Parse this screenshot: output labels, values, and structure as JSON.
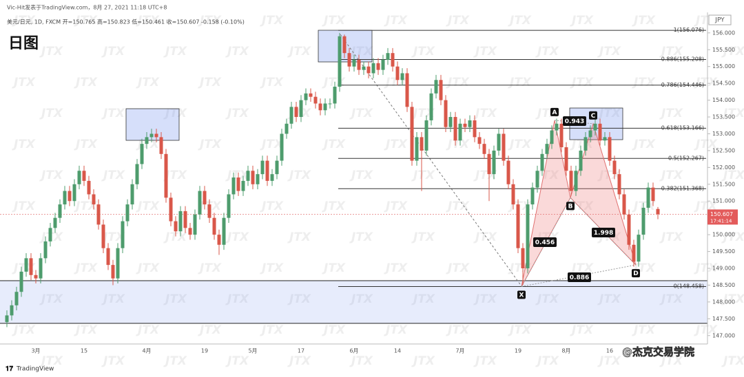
{
  "chart_data": {
    "type": "candlestick",
    "source": "Vic-Hit发表于TradingView.com，8月 27, 2021 11:18 UTC+8",
    "legend_text": "美元/日元, 1D, FXCM  开=150.765  高=150.823  低=150.461  收=150.607  -0.158 (-0.10%)",
    "title": "日图",
    "currency": "JPY",
    "countdown": "17:41:14",
    "watermark": "JTX",
    "footer_logo": "TradingView",
    "footer_credit": "@杰克交易学院",
    "up_color": "#4e9c6d",
    "down_color": "#d9574a",
    "ylim": [
      146.75,
      156.61
    ],
    "yticks": [
      {
        "value": 147,
        "label": "147.000"
      },
      {
        "value": 147.5,
        "label": "147.500"
      },
      {
        "value": 148,
        "label": "148.000"
      },
      {
        "value": 148.5,
        "label": "148.500"
      },
      {
        "value": 149,
        "label": "149.000"
      },
      {
        "value": 149.5,
        "label": "149.500"
      },
      {
        "value": 150,
        "label": "150.000"
      },
      {
        "value": 150.5,
        "label": "150.500"
      },
      {
        "value": 151,
        "label": "151.000"
      },
      {
        "value": 151.5,
        "label": "151.500"
      },
      {
        "value": 152,
        "label": "152.000"
      },
      {
        "value": 152.5,
        "label": "152.500"
      },
      {
        "value": 153,
        "label": "153.000"
      },
      {
        "value": 153.5,
        "label": "153.500"
      },
      {
        "value": 154,
        "label": "154.000"
      },
      {
        "value": 154.5,
        "label": "154.500"
      },
      {
        "value": 155,
        "label": "155.000"
      },
      {
        "value": 155.5,
        "label": "155.500"
      },
      {
        "value": 156,
        "label": "156.000"
      }
    ],
    "categories": [
      null,
      null,
      null,
      null,
      null,
      null,
      "3月",
      null,
      null,
      null,
      null,
      null,
      null,
      null,
      null,
      null,
      "15",
      null,
      null,
      null,
      null,
      null,
      null,
      null,
      null,
      null,
      null,
      null,
      null,
      "4月",
      null,
      null,
      null,
      null,
      null,
      null,
      null,
      null,
      null,
      null,
      null,
      "19",
      null,
      null,
      null,
      null,
      null,
      null,
      null,
      null,
      null,
      "5月",
      null,
      null,
      null,
      null,
      null,
      null,
      null,
      null,
      null,
      "17",
      null,
      null,
      null,
      null,
      null,
      null,
      null,
      null,
      null,
      null,
      "6月",
      null,
      null,
      null,
      null,
      null,
      null,
      null,
      null,
      "14",
      null,
      null,
      null,
      null,
      null,
      null,
      null,
      null,
      null,
      null,
      null,
      null,
      "7月",
      null,
      null,
      null,
      null,
      null,
      null,
      null,
      null,
      null,
      null,
      null,
      "19",
      null,
      null,
      null,
      null,
      null,
      null,
      null,
      null,
      null,
      "8月",
      null,
      null,
      null,
      null,
      null,
      null,
      null,
      null,
      "16",
      null,
      null,
      null,
      null,
      null,
      null,
      null,
      null,
      null,
      null
    ],
    "ohlc": [
      [
        147.4,
        147.75,
        147.25,
        147.6
      ],
      [
        147.6,
        148.05,
        147.45,
        147.9
      ],
      [
        147.9,
        148.45,
        147.75,
        148.3
      ],
      [
        148.3,
        149.05,
        148.15,
        148.9
      ],
      [
        148.9,
        149.45,
        148.75,
        149.3
      ],
      [
        149.3,
        149.45,
        148.65,
        148.8
      ],
      [
        148.8,
        148.95,
        148.55,
        148.7
      ],
      [
        148.7,
        149.45,
        148.55,
        149.3
      ],
      [
        149.3,
        149.95,
        149.15,
        149.8
      ],
      [
        149.8,
        150.35,
        149.65,
        150.2
      ],
      [
        150.2,
        150.65,
        150.05,
        150.5
      ],
      [
        150.5,
        151.05,
        150.35,
        150.9
      ],
      [
        150.9,
        151.45,
        150.75,
        151.3
      ],
      [
        151.3,
        151.45,
        150.85,
        151.0
      ],
      [
        151.0,
        151.65,
        150.85,
        151.5
      ],
      [
        151.5,
        152.05,
        151.35,
        151.9
      ],
      [
        151.9,
        152.05,
        151.45,
        151.6
      ],
      [
        151.6,
        151.75,
        151.05,
        151.2
      ],
      [
        151.2,
        151.35,
        150.75,
        150.9
      ],
      [
        150.9,
        151.05,
        150.15,
        150.3
      ],
      [
        150.3,
        150.45,
        149.45,
        149.6
      ],
      [
        149.6,
        149.75,
        148.95,
        149.1
      ],
      [
        149.1,
        149.25,
        148.5,
        148.7
      ],
      [
        148.7,
        149.75,
        148.55,
        149.6
      ],
      [
        149.6,
        150.55,
        149.45,
        150.4
      ],
      [
        150.4,
        151.05,
        150.25,
        150.9
      ],
      [
        150.9,
        151.65,
        150.75,
        151.5
      ],
      [
        151.5,
        152.25,
        151.35,
        152.1
      ],
      [
        152.1,
        152.85,
        151.95,
        152.7
      ],
      [
        152.7,
        153.05,
        152.55,
        152.9
      ],
      [
        152.9,
        153.15,
        152.75,
        153.0
      ],
      [
        153.0,
        153.15,
        152.75,
        152.9
      ],
      [
        152.9,
        153.05,
        152.25,
        152.4
      ],
      [
        152.4,
        152.55,
        150.95,
        151.1
      ],
      [
        151.1,
        151.25,
        150.25,
        150.4
      ],
      [
        150.4,
        150.55,
        149.95,
        150.1
      ],
      [
        150.1,
        150.85,
        149.95,
        150.7
      ],
      [
        150.7,
        150.85,
        150.05,
        150.2
      ],
      [
        150.2,
        150.35,
        149.85,
        150.0
      ],
      [
        150.0,
        150.75,
        149.85,
        150.6
      ],
      [
        150.6,
        151.45,
        150.45,
        151.3
      ],
      [
        151.3,
        151.45,
        150.75,
        150.9
      ],
      [
        150.9,
        151.05,
        150.35,
        150.5
      ],
      [
        150.5,
        150.65,
        149.85,
        150.0
      ],
      [
        150.0,
        150.15,
        149.4,
        149.7
      ],
      [
        149.7,
        150.65,
        149.55,
        150.5
      ],
      [
        150.5,
        151.35,
        150.35,
        151.2
      ],
      [
        151.2,
        151.85,
        151.05,
        151.7
      ],
      [
        151.7,
        151.85,
        151.15,
        151.3
      ],
      [
        151.3,
        151.75,
        151.15,
        151.6
      ],
      [
        151.6,
        152.05,
        151.45,
        151.9
      ],
      [
        151.9,
        152.05,
        151.35,
        151.5
      ],
      [
        151.5,
        151.95,
        151.35,
        151.8
      ],
      [
        151.8,
        152.35,
        151.65,
        152.2
      ],
      [
        152.2,
        152.35,
        151.45,
        151.6
      ],
      [
        151.6,
        151.95,
        151.45,
        151.8
      ],
      [
        151.8,
        152.35,
        151.65,
        152.2
      ],
      [
        152.2,
        153.15,
        152.05,
        153.0
      ],
      [
        153.0,
        153.45,
        152.85,
        153.3
      ],
      [
        153.3,
        153.95,
        153.15,
        153.8
      ],
      [
        153.8,
        153.95,
        153.35,
        153.5
      ],
      [
        153.5,
        154.15,
        153.35,
        154.0
      ],
      [
        154.0,
        154.35,
        153.85,
        154.2
      ],
      [
        154.2,
        154.35,
        153.95,
        154.1
      ],
      [
        154.1,
        154.25,
        153.75,
        153.9
      ],
      [
        153.9,
        154.05,
        153.55,
        153.7
      ],
      [
        153.7,
        154.05,
        153.55,
        153.9
      ],
      [
        153.9,
        154.05,
        153.75,
        153.9
      ],
      [
        153.9,
        154.55,
        153.75,
        154.4
      ],
      [
        154.4,
        156.0,
        154.25,
        155.9
      ],
      [
        155.9,
        155.95,
        155.25,
        155.4
      ],
      [
        155.4,
        155.55,
        154.85,
        155.0
      ],
      [
        155.0,
        155.35,
        154.85,
        155.2
      ],
      [
        155.2,
        155.35,
        154.75,
        154.9
      ],
      [
        154.9,
        155.15,
        154.75,
        155.0
      ],
      [
        155.0,
        155.15,
        154.65,
        154.8
      ],
      [
        154.8,
        155.25,
        154.65,
        155.1
      ],
      [
        155.1,
        155.25,
        154.75,
        154.9
      ],
      [
        154.9,
        155.35,
        154.75,
        155.2
      ],
      [
        155.2,
        155.55,
        155.05,
        155.4
      ],
      [
        155.4,
        155.55,
        154.85,
        155.0
      ],
      [
        155.0,
        155.15,
        154.45,
        154.6
      ],
      [
        154.6,
        154.95,
        154.45,
        154.8
      ],
      [
        154.8,
        154.95,
        153.65,
        153.8
      ],
      [
        153.8,
        153.95,
        152.05,
        152.2
      ],
      [
        152.2,
        153.05,
        152.05,
        152.9
      ],
      [
        152.9,
        153.05,
        151.3,
        152.5
      ],
      [
        152.5,
        153.55,
        152.35,
        153.4
      ],
      [
        153.4,
        154.35,
        153.25,
        154.2
      ],
      [
        154.2,
        154.75,
        154.05,
        154.6
      ],
      [
        154.6,
        154.75,
        153.85,
        154.0
      ],
      [
        154.0,
        154.15,
        153.05,
        153.2
      ],
      [
        153.2,
        153.65,
        153.05,
        153.5
      ],
      [
        153.5,
        153.65,
        152.65,
        152.8
      ],
      [
        152.8,
        153.45,
        152.65,
        153.3
      ],
      [
        153.3,
        153.45,
        153.05,
        153.2
      ],
      [
        153.2,
        153.55,
        153.05,
        153.4
      ],
      [
        153.4,
        153.55,
        152.75,
        152.9
      ],
      [
        152.9,
        153.05,
        152.55,
        152.7
      ],
      [
        152.7,
        152.85,
        152.25,
        152.4
      ],
      [
        152.4,
        152.55,
        151.0,
        151.8
      ],
      [
        151.8,
        152.65,
        151.65,
        152.5
      ],
      [
        152.5,
        153.15,
        152.35,
        153.0
      ],
      [
        153.0,
        153.15,
        152.05,
        152.2
      ],
      [
        152.2,
        152.35,
        151.35,
        151.5
      ],
      [
        151.5,
        151.65,
        150.75,
        150.9
      ],
      [
        150.9,
        151.05,
        149.45,
        149.6
      ],
      [
        149.6,
        149.75,
        148.5,
        149.0
      ],
      [
        149.0,
        151.05,
        148.85,
        150.9
      ],
      [
        150.9,
        151.55,
        150.75,
        151.4
      ],
      [
        151.4,
        152.05,
        151.25,
        151.9
      ],
      [
        151.9,
        152.55,
        151.75,
        152.4
      ],
      [
        152.4,
        152.85,
        152.25,
        152.7
      ],
      [
        152.7,
        153.25,
        152.55,
        153.1
      ],
      [
        153.1,
        153.45,
        152.95,
        153.3
      ],
      [
        153.3,
        153.45,
        152.45,
        152.6
      ],
      [
        152.6,
        152.75,
        151.75,
        151.9
      ],
      [
        151.9,
        152.05,
        151.15,
        151.3
      ],
      [
        151.3,
        152.05,
        151.15,
        151.9
      ],
      [
        151.9,
        152.65,
        151.75,
        152.5
      ],
      [
        152.5,
        153.05,
        152.35,
        152.9
      ],
      [
        152.9,
        153.25,
        152.75,
        153.1
      ],
      [
        153.1,
        153.45,
        152.95,
        153.3
      ],
      [
        153.3,
        153.45,
        152.65,
        152.8
      ],
      [
        152.8,
        153.05,
        152.65,
        152.9
      ],
      [
        152.9,
        153.05,
        152.05,
        152.2
      ],
      [
        152.2,
        152.35,
        151.65,
        151.8
      ],
      [
        151.8,
        151.95,
        151.05,
        151.2
      ],
      [
        151.2,
        151.35,
        150.45,
        150.6
      ],
      [
        150.6,
        150.75,
        149.55,
        149.7
      ],
      [
        149.7,
        149.85,
        149.05,
        149.2
      ],
      [
        149.2,
        150.15,
        149.05,
        150.0
      ],
      [
        150.0,
        150.95,
        149.85,
        150.8
      ],
      [
        150.8,
        151.55,
        150.65,
        151.4
      ],
      [
        151.4,
        151.55,
        150.85,
        151.0
      ],
      [
        150.765,
        150.823,
        150.461,
        150.607
      ]
    ],
    "fib_levels": [
      {
        "value": 156.076,
        "label": "1(156.076)"
      },
      {
        "value": 155.208,
        "label": "0.886(155.208)"
      },
      {
        "value": 154.446,
        "label": "0.786(154.446)"
      },
      {
        "value": 153.166,
        "label": "0.618(153.166)"
      },
      {
        "value": 152.267,
        "label": "0.5(152.267)"
      },
      {
        "value": 151.368,
        "label": "0.382(151.368)"
      },
      {
        "value": 148.458,
        "label": "0(148.458)"
      }
    ],
    "pattern": {
      "labels": [
        "X",
        "A",
        "B",
        "C",
        "D"
      ],
      "values": [
        148.458,
        153.4,
        151.1,
        153.3,
        149.1
      ],
      "ratios": [
        "0.943",
        "0.456",
        "1.998",
        "0.886"
      ]
    }
  }
}
